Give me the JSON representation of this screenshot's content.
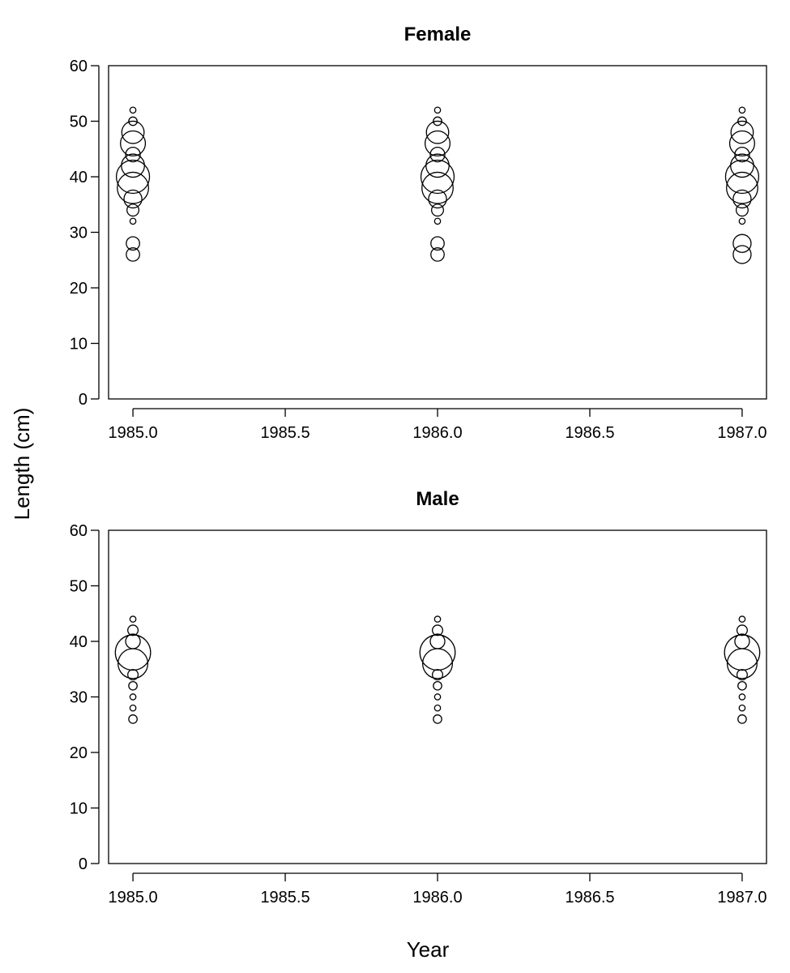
{
  "chart_data": [
    {
      "type": "scatter",
      "title": "Female",
      "xticks": [
        "1985.0",
        "1985.5",
        "1986.0",
        "1986.5",
        "1987.0"
      ],
      "yticks": [
        "0",
        "10",
        "20",
        "30",
        "40",
        "50",
        "60"
      ],
      "xlim": [
        1984.92,
        1987.08
      ],
      "ylim": [
        0,
        60
      ],
      "x": [
        1985.0,
        1986.0,
        1987.0
      ],
      "lengths": [
        26,
        28,
        30,
        32,
        34,
        36,
        38,
        40,
        42,
        44,
        46,
        48,
        50,
        52
      ],
      "proportions": [
        [
          0.1,
          0.1,
          0.0,
          0.02,
          0.08,
          0.18,
          0.55,
          0.62,
          0.3,
          0.12,
          0.35,
          0.28,
          0.04,
          0.02
        ],
        [
          0.1,
          0.1,
          0.0,
          0.02,
          0.08,
          0.18,
          0.55,
          0.62,
          0.3,
          0.12,
          0.35,
          0.28,
          0.04,
          0.02
        ],
        [
          0.18,
          0.18,
          0.0,
          0.02,
          0.08,
          0.18,
          0.55,
          0.62,
          0.3,
          0.12,
          0.35,
          0.28,
          0.04,
          0.02
        ]
      ]
    },
    {
      "type": "scatter",
      "title": "Male",
      "xticks": [
        "1985.0",
        "1985.5",
        "1986.0",
        "1986.5",
        "1987.0"
      ],
      "yticks": [
        "0",
        "10",
        "20",
        "30",
        "40",
        "50",
        "60"
      ],
      "xlim": [
        1984.92,
        1987.08
      ],
      "ylim": [
        0,
        60
      ],
      "x": [
        1985.0,
        1986.0,
        1987.0
      ],
      "lengths": [
        26,
        28,
        30,
        32,
        34,
        36,
        38,
        40,
        42,
        44
      ],
      "proportions": [
        [
          0.04,
          0.02,
          0.02,
          0.04,
          0.06,
          0.5,
          0.7,
          0.12,
          0.06,
          0.02
        ],
        [
          0.04,
          0.02,
          0.02,
          0.04,
          0.06,
          0.5,
          0.7,
          0.12,
          0.06,
          0.02
        ],
        [
          0.04,
          0.02,
          0.02,
          0.04,
          0.06,
          0.5,
          0.7,
          0.12,
          0.06,
          0.02
        ]
      ]
    }
  ],
  "ylabel": "Length (cm)",
  "xlabel": "Year"
}
